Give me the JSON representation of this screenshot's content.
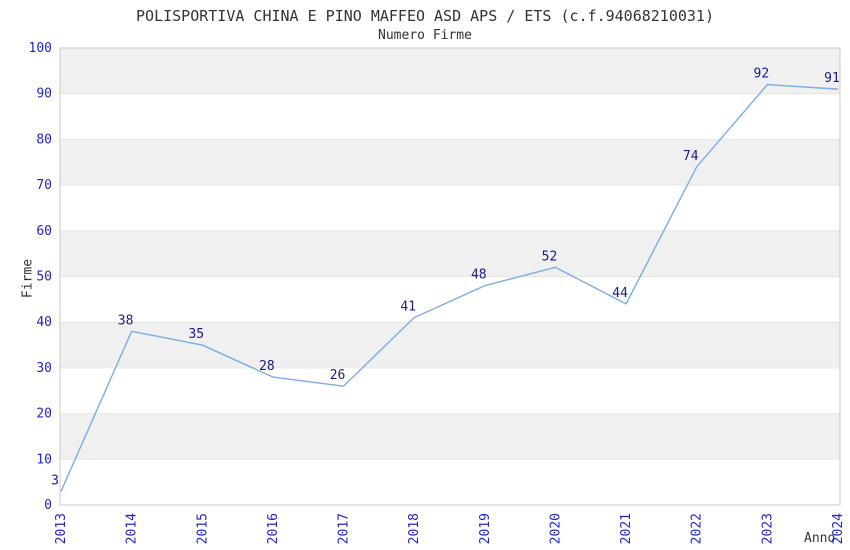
{
  "chart_data": {
    "type": "line",
    "title": "POLISPORTIVA CHINA E PINO MAFFEO ASD APS / ETS (c.f.94068210031)",
    "subtitle": "Numero Firme",
    "xlabel": "Anno",
    "ylabel": "Firme",
    "x": [
      2013,
      2014,
      2015,
      2016,
      2017,
      2018,
      2019,
      2020,
      2021,
      2022,
      2023,
      2024
    ],
    "series": [
      {
        "name": "Numero Firme",
        "values": [
          3,
          38,
          35,
          28,
          26,
          41,
          48,
          52,
          44,
          74,
          92,
          91
        ]
      }
    ],
    "ylim": [
      0,
      100
    ],
    "ytick_step": 10,
    "grid": "alternating-horizontal-bands",
    "legend": "none",
    "point_labels": true
  },
  "colors": {
    "line": "#79ade6",
    "tick_label": "#2424cc",
    "point_label": "#1a1a8c",
    "band": "#f0f0f0",
    "gridline": "#e6e6e6",
    "plot_border": "#c8c8c8",
    "text": "#333333",
    "background": "#ffffff"
  }
}
